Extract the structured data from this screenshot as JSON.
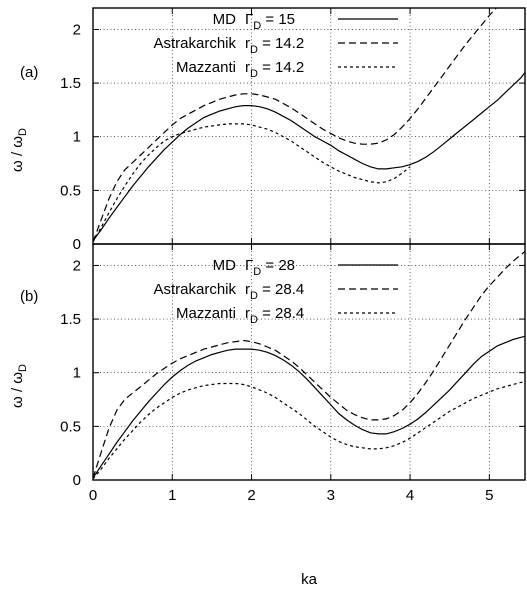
{
  "chart_data": [
    {
      "type": "line",
      "panel_label": "(a)",
      "xlabel": "",
      "ylabel": "ω / ωD",
      "xlim": [
        0,
        5.45
      ],
      "ylim": [
        0,
        2.2
      ],
      "xticks": [
        "0",
        "1",
        "2",
        "3",
        "4",
        "5"
      ],
      "yticks": [
        "0",
        "0.5",
        "1",
        "1.5",
        "2"
      ],
      "grid": true,
      "legend_position": "top-right",
      "series": [
        {
          "name": "MD",
          "param": "ΓD = 15",
          "style": "solid",
          "x": [
            0,
            0.1,
            0.2,
            0.3,
            0.4,
            0.5,
            0.6,
            0.7,
            0.8,
            0.9,
            1.0,
            1.1,
            1.2,
            1.3,
            1.4,
            1.5,
            1.6,
            1.7,
            1.8,
            1.9,
            2.0,
            2.1,
            2.2,
            2.3,
            2.4,
            2.5,
            2.6,
            2.7,
            2.8,
            2.9,
            3.0,
            3.1,
            3.2,
            3.3,
            3.4,
            3.5,
            3.6,
            3.7,
            3.8,
            3.9,
            4.0,
            4.1,
            4.2,
            4.3,
            4.4,
            4.5,
            4.6,
            4.7,
            4.8,
            4.9,
            5.0,
            5.1,
            5.2,
            5.3,
            5.4,
            5.45
          ],
          "y": [
            0.03,
            0.13,
            0.24,
            0.34,
            0.44,
            0.54,
            0.63,
            0.72,
            0.8,
            0.88,
            0.95,
            1.02,
            1.08,
            1.13,
            1.18,
            1.21,
            1.24,
            1.26,
            1.28,
            1.29,
            1.29,
            1.28,
            1.26,
            1.23,
            1.19,
            1.15,
            1.1,
            1.05,
            1.0,
            0.96,
            0.92,
            0.87,
            0.83,
            0.79,
            0.75,
            0.72,
            0.7,
            0.7,
            0.71,
            0.72,
            0.74,
            0.77,
            0.81,
            0.86,
            0.92,
            0.98,
            1.04,
            1.1,
            1.16,
            1.22,
            1.28,
            1.34,
            1.41,
            1.48,
            1.55,
            1.6
          ]
        },
        {
          "name": "Astrakarchik",
          "param": "rD = 14.2",
          "style": "dashed",
          "x": [
            0,
            0.1,
            0.2,
            0.3,
            0.4,
            0.5,
            0.6,
            0.7,
            0.8,
            0.9,
            1.0,
            1.1,
            1.2,
            1.3,
            1.4,
            1.5,
            1.6,
            1.7,
            1.8,
            1.9,
            2.0,
            2.1,
            2.2,
            2.3,
            2.4,
            2.5,
            2.6,
            2.7,
            2.8,
            2.9,
            3.0,
            3.1,
            3.2,
            3.3,
            3.4,
            3.5,
            3.6,
            3.7,
            3.8,
            3.9,
            4.0,
            4.1,
            4.2,
            4.3,
            4.4,
            4.5,
            4.6,
            4.7,
            4.8,
            4.9,
            5.0,
            5.1,
            5.2,
            5.3,
            5.4
          ],
          "y": [
            0.02,
            0.22,
            0.42,
            0.58,
            0.69,
            0.76,
            0.83,
            0.9,
            0.97,
            1.04,
            1.11,
            1.17,
            1.21,
            1.25,
            1.29,
            1.32,
            1.35,
            1.37,
            1.39,
            1.4,
            1.4,
            1.39,
            1.37,
            1.35,
            1.31,
            1.27,
            1.22,
            1.17,
            1.12,
            1.07,
            1.03,
            0.99,
            0.96,
            0.94,
            0.93,
            0.93,
            0.94,
            0.97,
            1.02,
            1.09,
            1.17,
            1.26,
            1.36,
            1.46,
            1.56,
            1.66,
            1.76,
            1.86,
            1.95,
            2.04,
            2.13,
            2.21,
            2.29,
            2.36,
            2.42
          ]
        },
        {
          "name": "Mazzanti",
          "param": "rD = 14.2",
          "style": "dotted",
          "x": [
            0,
            0.1,
            0.2,
            0.3,
            0.4,
            0.5,
            0.6,
            0.7,
            0.8,
            0.9,
            1.0,
            1.1,
            1.2,
            1.3,
            1.4,
            1.5,
            1.6,
            1.7,
            1.8,
            1.9,
            2.0,
            2.1,
            2.2,
            2.3,
            2.4,
            2.5,
            2.6,
            2.7,
            2.8,
            2.9,
            3.0,
            3.1,
            3.2,
            3.3,
            3.4,
            3.5,
            3.6,
            3.7,
            3.8,
            3.9,
            4.0
          ],
          "y": [
            0.02,
            0.15,
            0.29,
            0.42,
            0.54,
            0.65,
            0.75,
            0.83,
            0.9,
            0.96,
            1.0,
            1.03,
            1.05,
            1.07,
            1.09,
            1.1,
            1.11,
            1.12,
            1.12,
            1.12,
            1.11,
            1.09,
            1.07,
            1.04,
            1.0,
            0.96,
            0.91,
            0.86,
            0.81,
            0.76,
            0.72,
            0.68,
            0.65,
            0.62,
            0.6,
            0.58,
            0.57,
            0.58,
            0.61,
            0.66,
            0.72
          ]
        }
      ]
    },
    {
      "type": "line",
      "panel_label": "(b)",
      "xlabel": "ka",
      "ylabel": "ω / ωD",
      "xlim": [
        0,
        5.45
      ],
      "ylim": [
        0,
        2.2
      ],
      "xticks": [
        "0",
        "1",
        "2",
        "3",
        "4",
        "5"
      ],
      "yticks": [
        "0",
        "0.5",
        "1",
        "1.5",
        "2"
      ],
      "grid": true,
      "legend_position": "top-right",
      "series": [
        {
          "name": "MD",
          "param": "ΓD = 28",
          "style": "solid",
          "x": [
            0,
            0.1,
            0.2,
            0.3,
            0.4,
            0.5,
            0.6,
            0.7,
            0.8,
            0.9,
            1.0,
            1.1,
            1.2,
            1.3,
            1.4,
            1.5,
            1.6,
            1.7,
            1.8,
            1.9,
            2.0,
            2.1,
            2.2,
            2.3,
            2.4,
            2.5,
            2.6,
            2.7,
            2.8,
            2.9,
            3.0,
            3.1,
            3.2,
            3.3,
            3.4,
            3.5,
            3.6,
            3.7,
            3.8,
            3.9,
            4.0,
            4.1,
            4.2,
            4.3,
            4.4,
            4.5,
            4.6,
            4.7,
            4.8,
            4.9,
            5.0,
            5.1,
            5.2,
            5.3,
            5.4,
            5.45
          ],
          "y": [
            0.02,
            0.13,
            0.24,
            0.35,
            0.45,
            0.55,
            0.64,
            0.73,
            0.81,
            0.89,
            0.96,
            1.02,
            1.07,
            1.11,
            1.14,
            1.17,
            1.19,
            1.21,
            1.22,
            1.22,
            1.22,
            1.21,
            1.19,
            1.16,
            1.12,
            1.07,
            1.01,
            0.94,
            0.86,
            0.78,
            0.7,
            0.62,
            0.56,
            0.51,
            0.47,
            0.44,
            0.43,
            0.43,
            0.45,
            0.48,
            0.52,
            0.57,
            0.63,
            0.7,
            0.77,
            0.84,
            0.92,
            1.0,
            1.08,
            1.15,
            1.2,
            1.25,
            1.28,
            1.31,
            1.33,
            1.34
          ]
        },
        {
          "name": "Astrakarchik",
          "param": "rD = 28.4",
          "style": "dashed",
          "x": [
            0,
            0.1,
            0.2,
            0.3,
            0.4,
            0.5,
            0.6,
            0.7,
            0.8,
            0.9,
            1.0,
            1.1,
            1.2,
            1.3,
            1.4,
            1.5,
            1.6,
            1.7,
            1.8,
            1.9,
            2.0,
            2.1,
            2.2,
            2.3,
            2.4,
            2.5,
            2.6,
            2.7,
            2.8,
            2.9,
            3.0,
            3.1,
            3.2,
            3.3,
            3.4,
            3.5,
            3.6,
            3.7,
            3.8,
            3.9,
            4.0,
            4.1,
            4.2,
            4.3,
            4.4,
            4.5,
            4.6,
            4.7,
            4.8,
            4.9,
            5.0,
            5.1,
            5.2,
            5.3,
            5.4,
            5.45
          ],
          "y": [
            0.02,
            0.25,
            0.48,
            0.65,
            0.75,
            0.81,
            0.87,
            0.93,
            0.99,
            1.04,
            1.09,
            1.13,
            1.16,
            1.19,
            1.22,
            1.24,
            1.26,
            1.28,
            1.29,
            1.3,
            1.29,
            1.27,
            1.24,
            1.21,
            1.16,
            1.11,
            1.05,
            0.98,
            0.91,
            0.84,
            0.77,
            0.71,
            0.65,
            0.61,
            0.58,
            0.56,
            0.56,
            0.57,
            0.6,
            0.65,
            0.72,
            0.81,
            0.91,
            1.02,
            1.14,
            1.26,
            1.38,
            1.5,
            1.61,
            1.72,
            1.81,
            1.89,
            1.97,
            2.04,
            2.1,
            2.13
          ]
        },
        {
          "name": "Mazzanti",
          "param": "rD = 28.4",
          "style": "dotted",
          "x": [
            0,
            0.1,
            0.2,
            0.3,
            0.4,
            0.5,
            0.6,
            0.7,
            0.8,
            0.9,
            1.0,
            1.1,
            1.2,
            1.3,
            1.4,
            1.5,
            1.6,
            1.7,
            1.8,
            1.9,
            2.0,
            2.1,
            2.2,
            2.3,
            2.4,
            2.5,
            2.6,
            2.7,
            2.8,
            2.9,
            3.0,
            3.1,
            3.2,
            3.3,
            3.4,
            3.5,
            3.6,
            3.7,
            3.8,
            3.9,
            4.0,
            4.1,
            4.2,
            4.3,
            4.4,
            4.5,
            4.6,
            4.7,
            4.8,
            4.9,
            5.0,
            5.1,
            5.2,
            5.3,
            5.4,
            5.45
          ],
          "y": [
            0.01,
            0.1,
            0.2,
            0.29,
            0.38,
            0.46,
            0.54,
            0.61,
            0.67,
            0.72,
            0.77,
            0.81,
            0.84,
            0.86,
            0.88,
            0.89,
            0.9,
            0.9,
            0.9,
            0.89,
            0.87,
            0.84,
            0.81,
            0.77,
            0.72,
            0.67,
            0.62,
            0.56,
            0.5,
            0.45,
            0.4,
            0.36,
            0.33,
            0.31,
            0.3,
            0.29,
            0.29,
            0.3,
            0.32,
            0.35,
            0.39,
            0.44,
            0.49,
            0.54,
            0.59,
            0.64,
            0.68,
            0.72,
            0.76,
            0.79,
            0.82,
            0.85,
            0.87,
            0.89,
            0.91,
            0.92
          ]
        }
      ]
    }
  ]
}
